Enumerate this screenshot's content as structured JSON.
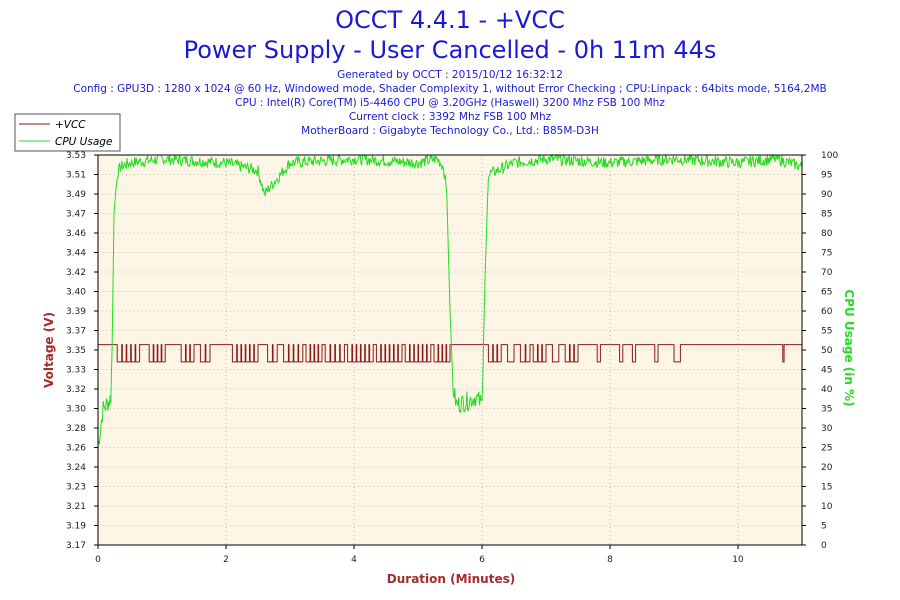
{
  "header": {
    "title_line1": "OCCT 4.4.1 - +VCC",
    "title_line2": "Power Supply - User Cancelled - 0h 11m 44s",
    "generated": "Generated by OCCT : 2015/10/12 16:32:12",
    "config": "Config : GPU3D : 1280 x 1024 @ 60 Hz, Windowed mode, Shader Complexity 1, without Error Checking ; CPU:Linpack : 64bits mode, 5164,2MB",
    "cpu": "CPU : Intel(R) Core(TM) i5-4460 CPU @ 3.20GHz (Haswell) 3200 Mhz FSB 100 Mhz",
    "clock": "Current clock : 3392 Mhz FSB 100 Mhz",
    "motherboard": "MotherBoard : Gigabyte Technology Co., Ltd.: B85M-D3H"
  },
  "colors": {
    "vcc": "#8b1a1a",
    "cpu": "#22dd22",
    "plot_bg": "#fdf5e6",
    "title": "#1a1ad6"
  },
  "chart_data": {
    "type": "line",
    "xlabel": "Duration (Minutes)",
    "ylabel_left": "Voltage (V)",
    "ylabel_right": "CPU Usage (in %)",
    "xlim": [
      0,
      11.0
    ],
    "ylim_left": [
      3.17,
      3.53
    ],
    "ylim_right": [
      0,
      100
    ],
    "x_ticks": [
      "0",
      "2",
      "4",
      "6",
      "8",
      "10"
    ],
    "y_left_ticks": [
      "3.17",
      "3.19",
      "3.21",
      "3.23",
      "3.24",
      "3.26",
      "3.28",
      "3.30",
      "3.32",
      "3.33",
      "3.35",
      "3.37",
      "3.39",
      "3.40",
      "3.42",
      "3.44",
      "3.46",
      "3.47",
      "3.49",
      "3.51",
      "3.53"
    ],
    "y_right_ticks": [
      "0",
      "5",
      "10",
      "15",
      "20",
      "25",
      "30",
      "35",
      "40",
      "45",
      "50",
      "55",
      "60",
      "65",
      "70",
      "75",
      "80",
      "85",
      "90",
      "95",
      "100"
    ],
    "legend": {
      "position": "top-left",
      "entries": [
        "+VCC",
        "CPU Usage"
      ]
    },
    "series": [
      {
        "name": "+VCC",
        "axis": "left",
        "base_value": 3.355,
        "dip_value": 3.339,
        "x": [
          0,
          11.0
        ],
        "dips": [
          [
            0.3,
            0.65
          ],
          [
            0.8,
            1.05
          ],
          [
            1.3,
            1.5
          ],
          [
            1.6,
            1.75
          ],
          [
            2.1,
            2.5
          ],
          [
            2.65,
            2.8
          ],
          [
            2.9,
            3.2
          ],
          [
            3.25,
            3.5
          ],
          [
            3.55,
            3.85
          ],
          [
            3.9,
            4.3
          ],
          [
            4.35,
            4.75
          ],
          [
            4.8,
            5.2
          ],
          [
            5.25,
            5.5
          ],
          [
            6.1,
            6.3
          ],
          [
            6.4,
            6.5
          ],
          [
            6.6,
            6.75
          ],
          [
            6.8,
            7.0
          ],
          [
            7.1,
            7.2
          ],
          [
            7.3,
            7.5
          ],
          [
            7.8,
            7.85
          ],
          [
            8.15,
            8.2
          ],
          [
            8.35,
            8.4
          ],
          [
            8.7,
            8.75
          ],
          [
            9.0,
            9.1
          ],
          [
            10.7,
            10.72
          ]
        ]
      },
      {
        "name": "CPU Usage",
        "axis": "right",
        "x": [
          0,
          0.08,
          0.18,
          0.2,
          0.22,
          0.25,
          0.3,
          0.35,
          0.5,
          1.0,
          2.0,
          2.5,
          2.6,
          3.0,
          4.0,
          5.0,
          5.3,
          5.4,
          5.45,
          5.5,
          5.55,
          5.6,
          5.8,
          5.9,
          6.0,
          6.05,
          6.1,
          6.5,
          7.0,
          8.0,
          9.0,
          10.0,
          10.6,
          11.0
        ],
        "values": [
          25,
          35,
          37,
          38,
          50,
          85,
          95,
          97,
          98,
          99,
          98,
          96,
          90,
          98,
          99,
          98,
          99,
          97,
          90,
          60,
          40,
          36,
          37,
          38,
          36,
          70,
          95,
          98,
          99,
          98,
          99,
          98,
          99,
          97
        ]
      }
    ]
  }
}
